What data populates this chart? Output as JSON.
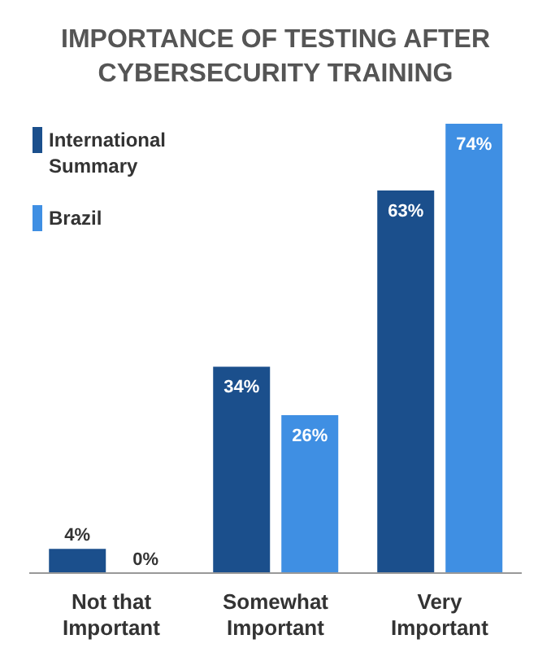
{
  "chart_data": {
    "type": "bar",
    "title": "IMPORTANCE OF TESTING AFTER CYBERSECURITY TRAINING",
    "categories": [
      "Not that Important",
      "Somewhat Important",
      "Very Important"
    ],
    "series": [
      {
        "name": "International Summary",
        "color": "#1b4f8c",
        "values": [
          4,
          34,
          63
        ],
        "value_labels": [
          "4%",
          "34%",
          "63%"
        ]
      },
      {
        "name": "Brazil",
        "color": "#3f8fe3",
        "values": [
          0,
          26,
          74
        ],
        "value_labels": [
          "0%",
          "26%",
          "74%"
        ]
      }
    ],
    "legend": "top left",
    "grid": false
  }
}
